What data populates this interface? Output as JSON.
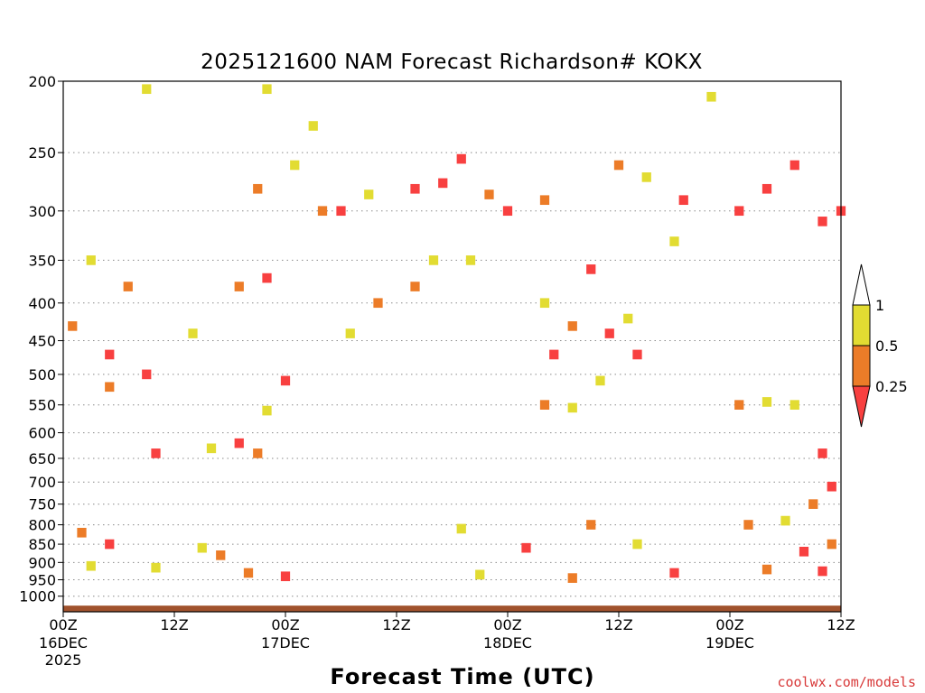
{
  "chart_data": {
    "type": "heatmap",
    "title": "2025121600 NAM Forecast Richardson# KOKX",
    "xlabel": "Forecast Time (UTC)",
    "ylabel": "",
    "x_ticks": [
      {
        "hour": 0,
        "label": "00Z",
        "sub": [
          "16DEC",
          "2025"
        ]
      },
      {
        "hour": 12,
        "label": "12Z",
        "sub": []
      },
      {
        "hour": 24,
        "label": "00Z",
        "sub": [
          "17DEC"
        ]
      },
      {
        "hour": 36,
        "label": "12Z",
        "sub": []
      },
      {
        "hour": 48,
        "label": "00Z",
        "sub": [
          "18DEC"
        ]
      },
      {
        "hour": 60,
        "label": "12Z",
        "sub": []
      },
      {
        "hour": 72,
        "label": "00Z",
        "sub": [
          "19DEC"
        ]
      },
      {
        "hour": 84,
        "label": "12Z",
        "sub": []
      }
    ],
    "xlim": [
      0,
      84
    ],
    "y_ticks": [
      200,
      250,
      300,
      350,
      400,
      450,
      500,
      550,
      600,
      650,
      700,
      750,
      800,
      850,
      900,
      950,
      1000
    ],
    "ylim": [
      200,
      1050
    ],
    "y_scale": "log",
    "y_inverted": true,
    "grid": "dotted horizontal at pressure levels",
    "colorbar": {
      "labels": [
        "1",
        "0.5",
        "0.25"
      ],
      "bins": [
        {
          "range": "< 0.25",
          "color": "#f84040"
        },
        {
          "range": "0.25 - 0.5",
          "color": "#ec7c28"
        },
        {
          "range": "0.5 - 1",
          "color": "#e2dc32"
        },
        {
          "range": "> 1",
          "color": "#ffffff"
        }
      ]
    },
    "colors": {
      "low": "#f84040",
      "mid": "#ec7c28",
      "high": "#e2dc32",
      "ground": "#a0522d"
    },
    "cells": [
      {
        "t": 9,
        "p": 205,
        "v": "high"
      },
      {
        "t": 22,
        "p": 205,
        "v": "high"
      },
      {
        "t": 27,
        "p": 230,
        "v": "high"
      },
      {
        "t": 25,
        "p": 260,
        "v": "high"
      },
      {
        "t": 21,
        "p": 280,
        "v": "mid"
      },
      {
        "t": 28,
        "p": 300,
        "v": "mid"
      },
      {
        "t": 30,
        "p": 300,
        "v": "low"
      },
      {
        "t": 33,
        "p": 285,
        "v": "high"
      },
      {
        "t": 38,
        "p": 280,
        "v": "low"
      },
      {
        "t": 41,
        "p": 275,
        "v": "low"
      },
      {
        "t": 43,
        "p": 255,
        "v": "low"
      },
      {
        "t": 46,
        "p": 285,
        "v": "mid"
      },
      {
        "t": 48,
        "p": 300,
        "v": "low"
      },
      {
        "t": 52,
        "p": 290,
        "v": "mid"
      },
      {
        "t": 60,
        "p": 260,
        "v": "mid"
      },
      {
        "t": 63,
        "p": 270,
        "v": "high"
      },
      {
        "t": 67,
        "p": 290,
        "v": "low"
      },
      {
        "t": 70,
        "p": 210,
        "v": "high"
      },
      {
        "t": 73,
        "p": 300,
        "v": "low"
      },
      {
        "t": 76,
        "p": 280,
        "v": "low"
      },
      {
        "t": 79,
        "p": 260,
        "v": "low"
      },
      {
        "t": 82,
        "p": 310,
        "v": "low"
      },
      {
        "t": 84,
        "p": 300,
        "v": "low"
      },
      {
        "t": 3,
        "p": 350,
        "v": "high"
      },
      {
        "t": 7,
        "p": 380,
        "v": "mid"
      },
      {
        "t": 1,
        "p": 430,
        "v": "mid"
      },
      {
        "t": 5,
        "p": 470,
        "v": "low"
      },
      {
        "t": 9,
        "p": 500,
        "v": "low"
      },
      {
        "t": 5,
        "p": 520,
        "v": "mid"
      },
      {
        "t": 10,
        "p": 640,
        "v": "low"
      },
      {
        "t": 14,
        "p": 440,
        "v": "high"
      },
      {
        "t": 16,
        "p": 630,
        "v": "high"
      },
      {
        "t": 19,
        "p": 620,
        "v": "low"
      },
      {
        "t": 21,
        "p": 640,
        "v": "mid"
      },
      {
        "t": 22,
        "p": 560,
        "v": "high"
      },
      {
        "t": 24,
        "p": 510,
        "v": "low"
      },
      {
        "t": 19,
        "p": 380,
        "v": "mid"
      },
      {
        "t": 22,
        "p": 370,
        "v": "low"
      },
      {
        "t": 31,
        "p": 440,
        "v": "high"
      },
      {
        "t": 34,
        "p": 400,
        "v": "mid"
      },
      {
        "t": 38,
        "p": 380,
        "v": "mid"
      },
      {
        "t": 40,
        "p": 350,
        "v": "high"
      },
      {
        "t": 44,
        "p": 350,
        "v": "high"
      },
      {
        "t": 52,
        "p": 400,
        "v": "high"
      },
      {
        "t": 53,
        "p": 470,
        "v": "low"
      },
      {
        "t": 55,
        "p": 430,
        "v": "mid"
      },
      {
        "t": 57,
        "p": 360,
        "v": "low"
      },
      {
        "t": 59,
        "p": 440,
        "v": "low"
      },
      {
        "t": 61,
        "p": 420,
        "v": "high"
      },
      {
        "t": 62,
        "p": 470,
        "v": "low"
      },
      {
        "t": 66,
        "p": 330,
        "v": "high"
      },
      {
        "t": 52,
        "p": 550,
        "v": "mid"
      },
      {
        "t": 55,
        "p": 555,
        "v": "high"
      },
      {
        "t": 58,
        "p": 510,
        "v": "high"
      },
      {
        "t": 73,
        "p": 550,
        "v": "mid"
      },
      {
        "t": 76,
        "p": 545,
        "v": "high"
      },
      {
        "t": 79,
        "p": 550,
        "v": "high"
      },
      {
        "t": 82,
        "p": 640,
        "v": "low"
      },
      {
        "t": 83,
        "p": 710,
        "v": "low"
      },
      {
        "t": 81,
        "p": 750,
        "v": "mid"
      },
      {
        "t": 78,
        "p": 790,
        "v": "high"
      },
      {
        "t": 74,
        "p": 800,
        "v": "mid"
      },
      {
        "t": 57,
        "p": 800,
        "v": "mid"
      },
      {
        "t": 43,
        "p": 810,
        "v": "high"
      },
      {
        "t": 2,
        "p": 820,
        "v": "mid"
      },
      {
        "t": 5,
        "p": 850,
        "v": "low"
      },
      {
        "t": 15,
        "p": 860,
        "v": "high"
      },
      {
        "t": 17,
        "p": 880,
        "v": "mid"
      },
      {
        "t": 62,
        "p": 850,
        "v": "high"
      },
      {
        "t": 50,
        "p": 860,
        "v": "low"
      },
      {
        "t": 80,
        "p": 870,
        "v": "low"
      },
      {
        "t": 83,
        "p": 850,
        "v": "mid"
      },
      {
        "t": 3,
        "p": 910,
        "v": "high"
      },
      {
        "t": 10,
        "p": 915,
        "v": "high"
      },
      {
        "t": 20,
        "p": 930,
        "v": "mid"
      },
      {
        "t": 24,
        "p": 940,
        "v": "low"
      },
      {
        "t": 45,
        "p": 935,
        "v": "high"
      },
      {
        "t": 55,
        "p": 945,
        "v": "mid"
      },
      {
        "t": 66,
        "p": 930,
        "v": "low"
      },
      {
        "t": 76,
        "p": 920,
        "v": "mid"
      },
      {
        "t": 82,
        "p": 925,
        "v": "low"
      }
    ]
  },
  "credit": "coolwx.com/models"
}
